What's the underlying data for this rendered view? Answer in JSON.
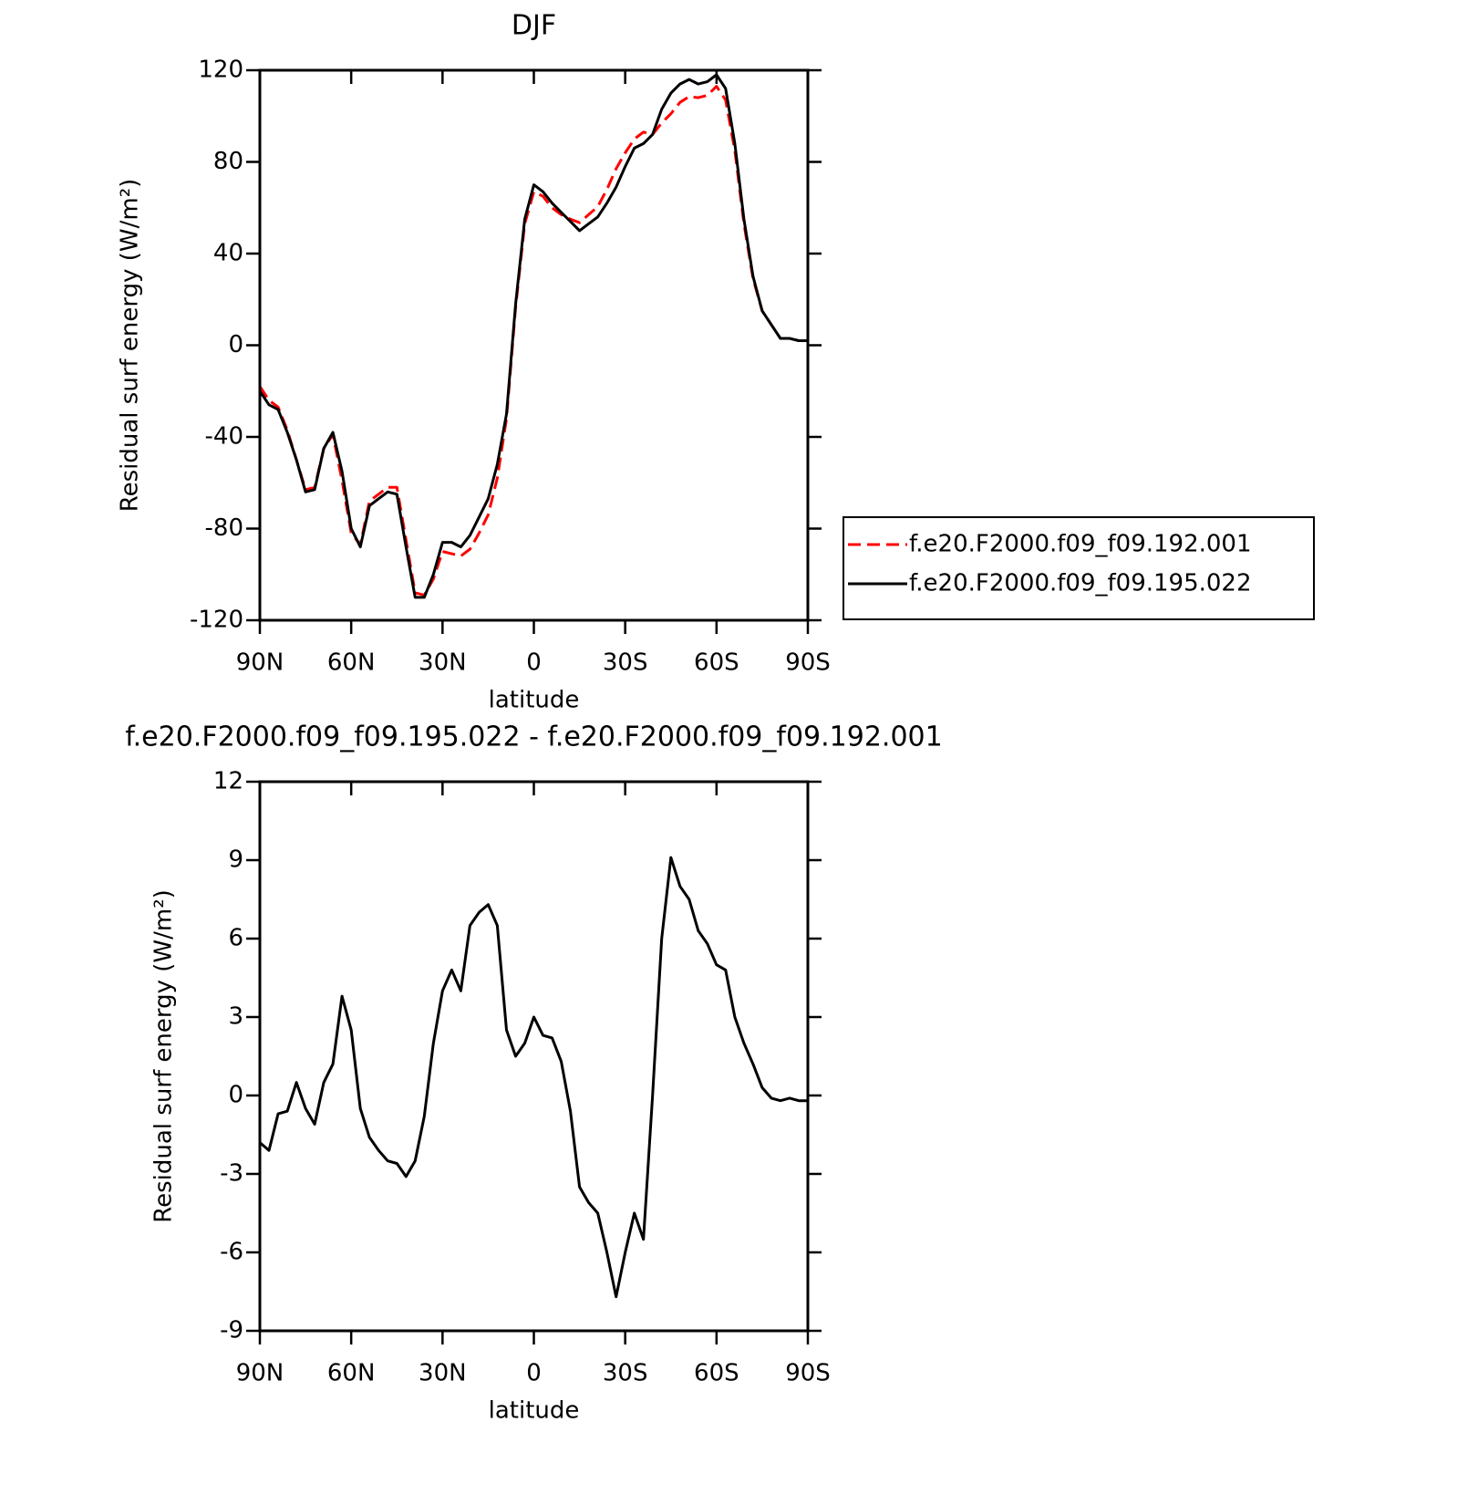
{
  "chart_data": [
    {
      "type": "line",
      "title": "DJF",
      "ylabel": "Residual surf energy (W/m²)",
      "xlabel": "latitude",
      "x": [
        90,
        87,
        84,
        81,
        78,
        75,
        72,
        69,
        66,
        63,
        60,
        57,
        54,
        51,
        48,
        45,
        42,
        39,
        36,
        33,
        30,
        27,
        24,
        21,
        18,
        15,
        12,
        9,
        6,
        3,
        0,
        -3,
        -6,
        -9,
        -12,
        -15,
        -18,
        -21,
        -24,
        -27,
        -30,
        -33,
        -36,
        -39,
        -42,
        -45,
        -48,
        -51,
        -54,
        -57,
        -60,
        -63,
        -66,
        -69,
        -72,
        -75,
        -78,
        -81,
        -84,
        -87,
        -90
      ],
      "xlim": [
        90,
        -90
      ],
      "xticks": [
        {
          "value": 90,
          "label": "90N"
        },
        {
          "value": 60,
          "label": "60N"
        },
        {
          "value": 30,
          "label": "30N"
        },
        0,
        {
          "value": -30,
          "label": "30S"
        },
        {
          "value": -60,
          "label": "60S"
        },
        {
          "value": -90,
          "label": "90S"
        }
      ],
      "ylim": [
        -120,
        120
      ],
      "yticks": [
        -120,
        -80,
        -40,
        0,
        40,
        80,
        120
      ],
      "legend": "right",
      "series": [
        {
          "name": "f.e20.F2000.f09_f09.192.001",
          "color": "#ff0000",
          "style": "dashed",
          "values": [
            -18,
            -24,
            -27,
            -37,
            -50,
            -63,
            -62,
            -45,
            -39,
            -59,
            -82,
            -87,
            -68,
            -65,
            -62,
            -62,
            -85,
            -108,
            -109,
            -102,
            -90,
            -91,
            -92,
            -89,
            -82,
            -74,
            -58,
            -32,
            16.5,
            53,
            67,
            65,
            60,
            57,
            55,
            53.5,
            57,
            60.5,
            68,
            77,
            84,
            90,
            93,
            92,
            97,
            101,
            106,
            108.5,
            108,
            109,
            113,
            107,
            85,
            53,
            29,
            15,
            9,
            3,
            3,
            2,
            2
          ]
        },
        {
          "name": "f.e20.F2000.f09_f09.195.022",
          "color": "#000000",
          "style": "solid",
          "values": [
            -20,
            -26,
            -28,
            -38,
            -50,
            -64,
            -63,
            -45,
            -38,
            -55,
            -80,
            -88,
            -70,
            -67,
            -64,
            -65,
            -88,
            -110,
            -110,
            -100,
            -86,
            -86,
            -88,
            -83,
            -75,
            -67,
            -52,
            -30,
            18,
            55,
            70,
            67,
            62,
            58,
            54,
            50,
            53,
            56,
            62,
            69,
            78,
            86,
            88,
            92,
            103,
            110,
            114,
            116,
            114,
            115,
            118,
            112,
            88,
            55,
            30,
            15,
            9,
            3,
            3,
            2,
            2
          ]
        }
      ]
    },
    {
      "type": "line",
      "title": "f.e20.F2000.f09_f09.195.022 - f.e20.F2000.f09_f09.192.001",
      "ylabel": "Residual surf energy (W/m²)",
      "xlabel": "latitude",
      "x": [
        90,
        87,
        84,
        81,
        78,
        75,
        72,
        69,
        66,
        63,
        60,
        57,
        54,
        51,
        48,
        45,
        42,
        39,
        36,
        33,
        30,
        27,
        24,
        21,
        18,
        15,
        12,
        9,
        6,
        3,
        0,
        -3,
        -6,
        -9,
        -12,
        -15,
        -18,
        -21,
        -24,
        -27,
        -30,
        -33,
        -36,
        -39,
        -42,
        -45,
        -48,
        -51,
        -54,
        -57,
        -60,
        -63,
        -66,
        -69,
        -72,
        -75,
        -78,
        -81,
        -84,
        -87,
        -90
      ],
      "xlim": [
        90,
        -90
      ],
      "xticks": [
        {
          "value": 90,
          "label": "90N"
        },
        {
          "value": 60,
          "label": "60N"
        },
        {
          "value": 30,
          "label": "30N"
        },
        0,
        {
          "value": -30,
          "label": "30S"
        },
        {
          "value": -60,
          "label": "60S"
        },
        {
          "value": -90,
          "label": "90S"
        }
      ],
      "ylim": [
        -9,
        12
      ],
      "yticks": [
        -9,
        -6,
        -3,
        0,
        3,
        6,
        9,
        12
      ],
      "series": [
        {
          "color": "#000000",
          "style": "solid",
          "values": [
            -1.8,
            -2.1,
            -0.7,
            -0.6,
            0.5,
            -0.5,
            -1.1,
            0.5,
            1.2,
            3.8,
            2.5,
            -0.5,
            -1.6,
            -2.1,
            -2.5,
            -2.6,
            -3.1,
            -2.5,
            -0.8,
            2.0,
            4.0,
            4.8,
            4.0,
            6.5,
            7.0,
            7.3,
            6.5,
            2.5,
            1.5,
            2.0,
            3.0,
            2.3,
            2.2,
            1.3,
            -0.6,
            -3.5,
            -4.1,
            -4.5,
            -6.0,
            -7.7,
            -6.0,
            -4.5,
            -5.5,
            0.0,
            6.0,
            9.1,
            8.0,
            7.5,
            6.3,
            5.8,
            5.0,
            4.8,
            3.0,
            2.0,
            1.2,
            0.3,
            -0.1,
            -0.2,
            -0.1,
            -0.2,
            -0.2
          ]
        }
      ]
    }
  ]
}
